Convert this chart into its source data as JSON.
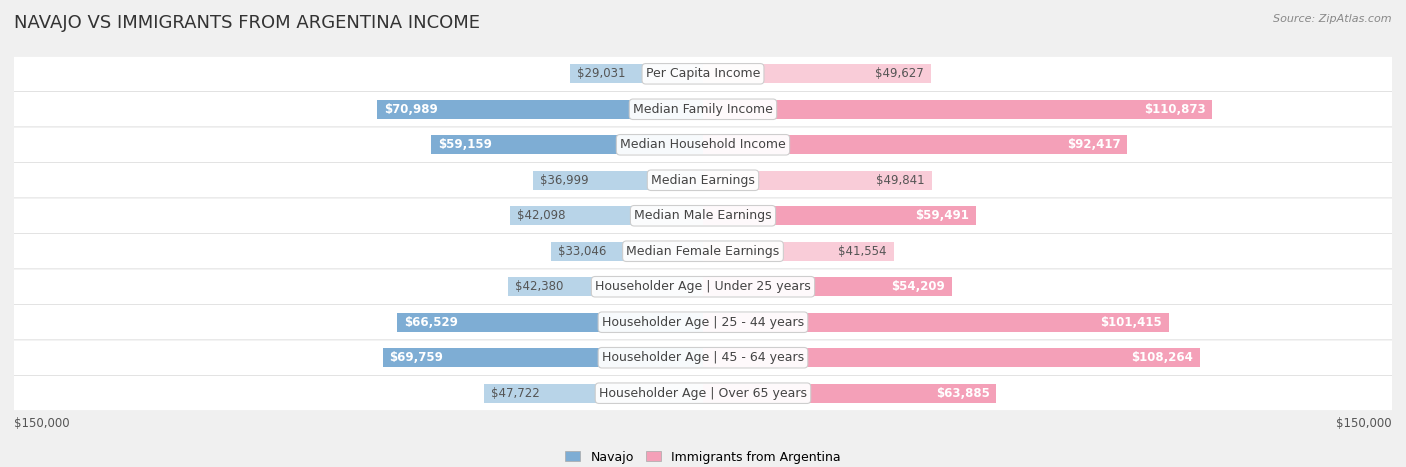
{
  "title": "NAVAJO VS IMMIGRANTS FROM ARGENTINA INCOME",
  "source": "Source: ZipAtlas.com",
  "categories": [
    "Per Capita Income",
    "Median Family Income",
    "Median Household Income",
    "Median Earnings",
    "Median Male Earnings",
    "Median Female Earnings",
    "Householder Age | Under 25 years",
    "Householder Age | 25 - 44 years",
    "Householder Age | 45 - 64 years",
    "Householder Age | Over 65 years"
  ],
  "navajo_values": [
    29031,
    70989,
    59159,
    36999,
    42098,
    33046,
    42380,
    66529,
    69759,
    47722
  ],
  "argentina_values": [
    49627,
    110873,
    92417,
    49841,
    59491,
    41554,
    54209,
    101415,
    108264,
    63885
  ],
  "navajo_color": "#7eadd4",
  "navajo_color_light": "#b8d4e8",
  "argentina_color": "#f4a0b8",
  "argentina_color_light": "#f9ccd8",
  "max_value": 150000,
  "navajo_label": "Navajo",
  "argentina_label": "Immigrants from Argentina",
  "background_color": "#f0f0f0",
  "row_bg_color": "#ffffff",
  "row_alt_bg_color": "#f5f5f5",
  "label_fontsize": 9,
  "title_fontsize": 13,
  "value_fontsize": 8.5,
  "legend_fontsize": 9
}
